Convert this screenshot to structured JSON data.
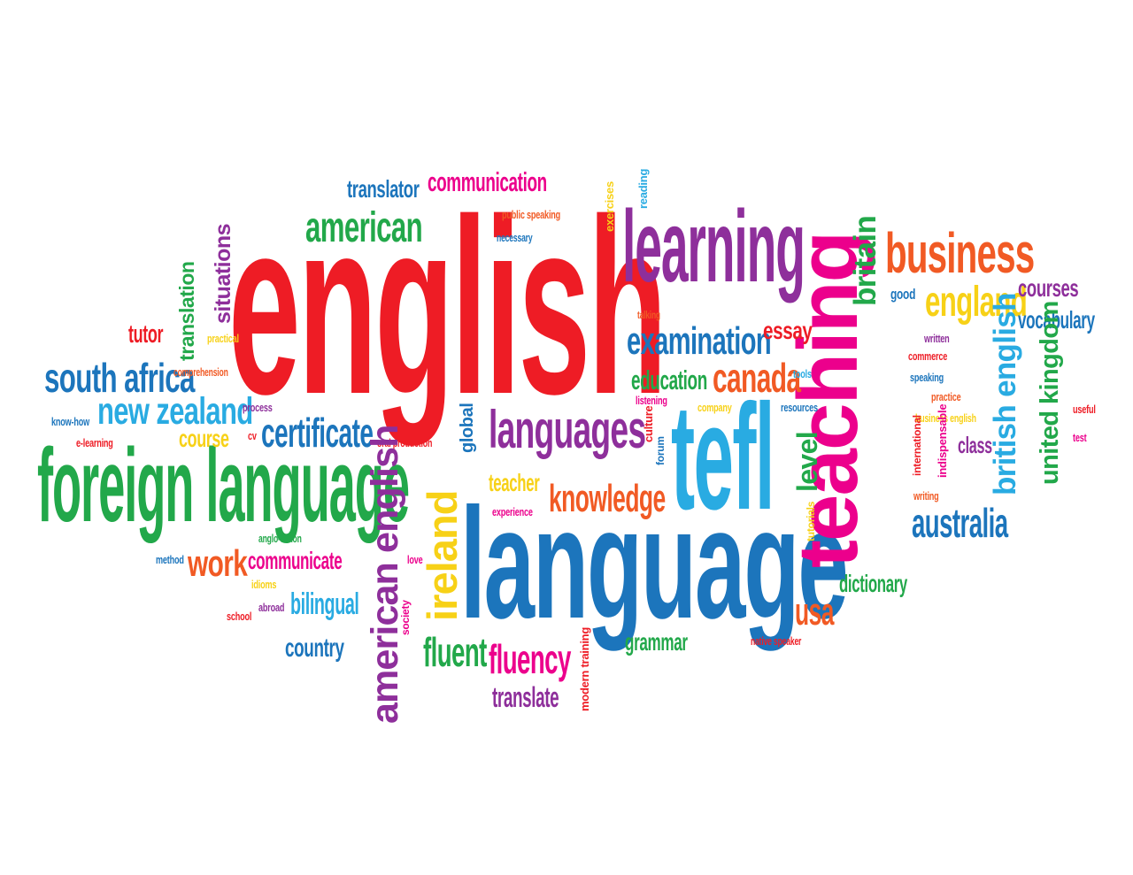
{
  "palette": {
    "red": "#ee1c25",
    "purple": "#8e2f9b",
    "orange": "#f15a24",
    "blue": "#1c75bc",
    "green": "#22a84a",
    "sky": "#29abe2",
    "magenta": "#ec008c",
    "yellow": "#f7d117"
  },
  "words": [
    {
      "id": "w0",
      "text": "english",
      "color": "#ee1c25"
    },
    {
      "id": "w1",
      "text": "language",
      "color": "#1c75bc"
    },
    {
      "id": "w2",
      "text": "foreign language",
      "color": "#22a84a"
    },
    {
      "id": "w3",
      "text": "learning",
      "color": "#8e2f9b"
    },
    {
      "id": "w4",
      "text": "teaching",
      "color": "#ec008c"
    },
    {
      "id": "w5",
      "text": "tefl",
      "color": "#29abe2"
    },
    {
      "id": "w6",
      "text": "business",
      "color": "#f15a24"
    },
    {
      "id": "w7",
      "text": "american",
      "color": "#22a84a"
    },
    {
      "id": "w8",
      "text": "languages",
      "color": "#8e2f9b"
    },
    {
      "id": "w9",
      "text": "examination",
      "color": "#1c75bc"
    },
    {
      "id": "w10",
      "text": "england",
      "color": "#f7d117"
    },
    {
      "id": "w11",
      "text": "south africa",
      "color": "#1c75bc"
    },
    {
      "id": "w12",
      "text": "new zealand",
      "color": "#29abe2"
    },
    {
      "id": "w13",
      "text": "certificate",
      "color": "#1c75bc"
    },
    {
      "id": "w14",
      "text": "canada",
      "color": "#f15a24"
    },
    {
      "id": "w15",
      "text": "knowledge",
      "color": "#f15a24"
    },
    {
      "id": "w16",
      "text": "australia",
      "color": "#1c75bc"
    },
    {
      "id": "w17",
      "text": "fluency",
      "color": "#ec008c"
    },
    {
      "id": "w18",
      "text": "fluent",
      "color": "#22a84a"
    },
    {
      "id": "w19",
      "text": "communication",
      "color": "#ec008c"
    },
    {
      "id": "w20",
      "text": "translator",
      "color": "#1c75bc"
    },
    {
      "id": "w21",
      "text": "courses",
      "color": "#8e2f9b"
    },
    {
      "id": "w22",
      "text": "vocabulary",
      "color": "#1c75bc"
    },
    {
      "id": "w23",
      "text": "education",
      "color": "#22a84a"
    },
    {
      "id": "w24",
      "text": "essay",
      "color": "#ee1c25"
    },
    {
      "id": "w25",
      "text": "work",
      "color": "#f15a24"
    },
    {
      "id": "w26",
      "text": "communicate",
      "color": "#ec008c"
    },
    {
      "id": "w27",
      "text": "bilingual",
      "color": "#29abe2"
    },
    {
      "id": "w28",
      "text": "country",
      "color": "#1c75bc"
    },
    {
      "id": "w29",
      "text": "dictionary",
      "color": "#22a84a"
    },
    {
      "id": "w30",
      "text": "usa",
      "color": "#f15a24"
    },
    {
      "id": "w31",
      "text": "grammar",
      "color": "#22a84a"
    },
    {
      "id": "w32",
      "text": "translate",
      "color": "#8e2f9b"
    },
    {
      "id": "w33",
      "text": "teacher",
      "color": "#f7d117"
    },
    {
      "id": "w34",
      "text": "course",
      "color": "#f7d117"
    },
    {
      "id": "w35",
      "text": "tutor",
      "color": "#ee1c25"
    },
    {
      "id": "w36",
      "text": "good",
      "color": "#1c75bc"
    },
    {
      "id": "w37",
      "text": "class",
      "color": "#8e2f9b"
    },
    {
      "id": "w38",
      "text": "public speaking",
      "color": "#f15a24"
    },
    {
      "id": "w39",
      "text": "necessary",
      "color": "#1c75bc"
    },
    {
      "id": "w40",
      "text": "talking",
      "color": "#f15a24"
    },
    {
      "id": "w41",
      "text": "written",
      "color": "#8e2f9b"
    },
    {
      "id": "w42",
      "text": "commerce",
      "color": "#ee1c25"
    },
    {
      "id": "w43",
      "text": "speaking",
      "color": "#1c75bc"
    },
    {
      "id": "w44",
      "text": "practice",
      "color": "#f15a24"
    },
    {
      "id": "w45",
      "text": "business english",
      "color": "#f7d117"
    },
    {
      "id": "w46",
      "text": "useful",
      "color": "#ee1c25"
    },
    {
      "id": "w47",
      "text": "test",
      "color": "#ec008c"
    },
    {
      "id": "w48",
      "text": "comprehension",
      "color": "#f15a24"
    },
    {
      "id": "w49",
      "text": "practical",
      "color": "#f7d117"
    },
    {
      "id": "w50",
      "text": "know-how",
      "color": "#1c75bc"
    },
    {
      "id": "w51",
      "text": "e-learning",
      "color": "#ee1c25"
    },
    {
      "id": "w52",
      "text": "process",
      "color": "#8e2f9b"
    },
    {
      "id": "w53",
      "text": "cv",
      "color": "#ee1c25"
    },
    {
      "id": "w54",
      "text": "oral production",
      "color": "#ee1c25"
    },
    {
      "id": "w55",
      "text": "listening",
      "color": "#ec008c"
    },
    {
      "id": "w56",
      "text": "company",
      "color": "#f7d117"
    },
    {
      "id": "w57",
      "text": "resources",
      "color": "#1c75bc"
    },
    {
      "id": "w58",
      "text": "tools",
      "color": "#29abe2"
    },
    {
      "id": "w59",
      "text": "experience",
      "color": "#ec008c"
    },
    {
      "id": "w60",
      "text": "anglo-saxon",
      "color": "#22a84a"
    },
    {
      "id": "w61",
      "text": "method",
      "color": "#1c75bc"
    },
    {
      "id": "w62",
      "text": "idioms",
      "color": "#f7d117"
    },
    {
      "id": "w63",
      "text": "abroad",
      "color": "#8e2f9b"
    },
    {
      "id": "w64",
      "text": "school",
      "color": "#ee1c25"
    },
    {
      "id": "w65",
      "text": "love",
      "color": "#ec008c"
    },
    {
      "id": "w66",
      "text": "native speaker",
      "color": "#ee1c25"
    },
    {
      "id": "w67",
      "text": "writing",
      "color": "#f15a24"
    },
    {
      "id": "w68",
      "text": "situations",
      "color": "#8e2f9b"
    },
    {
      "id": "w69",
      "text": "translation",
      "color": "#22a84a"
    },
    {
      "id": "w70",
      "text": "global",
      "color": "#1c75bc"
    },
    {
      "id": "w71",
      "text": "culture",
      "color": "#ee1c25"
    },
    {
      "id": "w72",
      "text": "forum",
      "color": "#1c75bc"
    },
    {
      "id": "w73",
      "text": "exercises",
      "color": "#f7d117"
    },
    {
      "id": "w74",
      "text": "reading",
      "color": "#29abe2"
    },
    {
      "id": "w75",
      "text": "britain",
      "color": "#22a84a"
    },
    {
      "id": "w76",
      "text": "british english",
      "color": "#29abe2"
    },
    {
      "id": "w77",
      "text": "united kingdom",
      "color": "#22a84a"
    },
    {
      "id": "w78",
      "text": "level",
      "color": "#22a84a"
    },
    {
      "id": "w79",
      "text": "international",
      "color": "#ee1c25"
    },
    {
      "id": "w80",
      "text": "indispensable",
      "color": "#ec008c"
    },
    {
      "id": "w81",
      "text": "tutorials",
      "color": "#f7d117"
    },
    {
      "id": "w82",
      "text": "american english",
      "color": "#8e2f9b"
    },
    {
      "id": "w83",
      "text": "ireland",
      "color": "#f7d117"
    },
    {
      "id": "w84",
      "text": "society",
      "color": "#ec008c"
    },
    {
      "id": "w85",
      "text": "modern training",
      "color": "#ee1c25"
    }
  ]
}
